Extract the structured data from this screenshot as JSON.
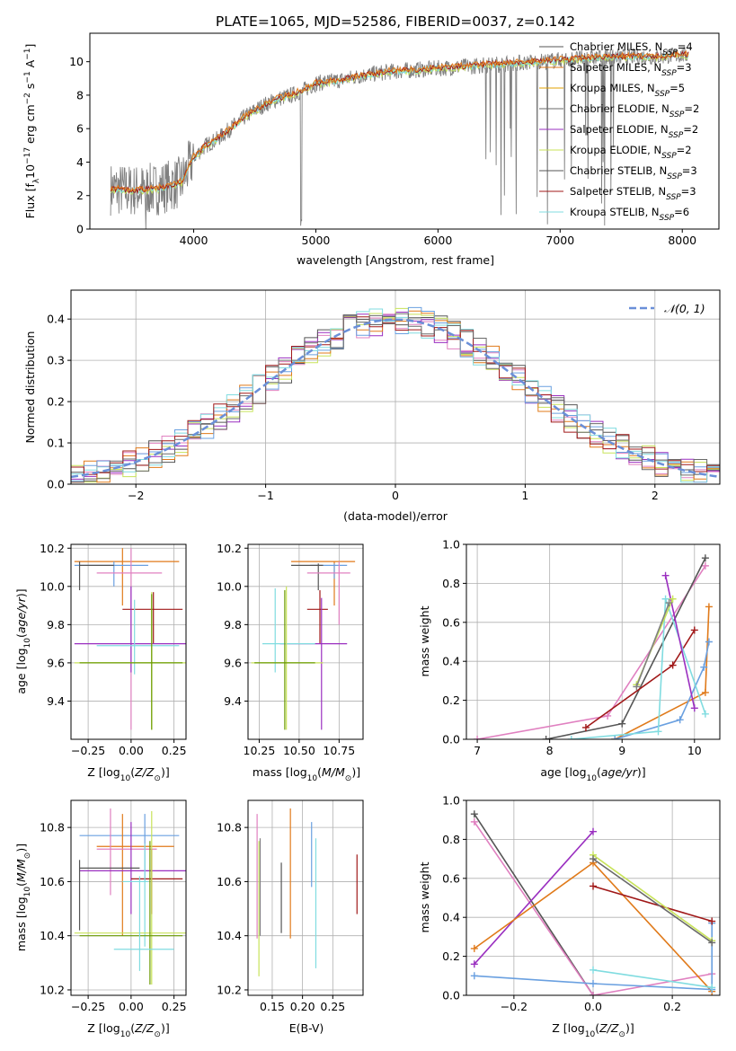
{
  "figure": {
    "title": "PLATE=1065, MJD=52586, FIBERID=0037, z=0.142"
  },
  "colors": {
    "data": "#808080",
    "models": [
      "#f59e5b",
      "#e0701a",
      "#e07a1a",
      "#6a6a6a",
      "#9a2fc0",
      "#c8e35a",
      "#555555",
      "#a01818",
      "#80dce0"
    ],
    "weights": {
      "chab_miles": "#555555",
      "salp_miles": "#e07a1a",
      "krou_miles": "#6aa0e0",
      "chab_elodie": "#808080",
      "salp_elodie": "#9a2fc0",
      "krou_elodie": "#c8e35a",
      "chab_stelib": "#404040",
      "salp_stelib": "#a01818",
      "krou_stelib": "#80dce0",
      "pink": "#e080c0"
    }
  },
  "chart_data": [
    {
      "id": "spectrum",
      "type": "line",
      "title": "PLATE=1065, MJD=52586, FIBERID=0037, z=0.142",
      "xlabel": "wavelength [Angstrom, rest frame]",
      "ylabel": "Flux [f_λ10^-17 erg cm^-2 s^-1 A^-1]",
      "xlim": [
        3150,
        8300
      ],
      "ylim": [
        0,
        11.7
      ],
      "xticks": [
        4000,
        5000,
        6000,
        7000,
        8000
      ],
      "yticks": [
        0,
        2,
        4,
        6,
        8,
        10
      ],
      "legend_position": "top-right",
      "legend": [
        {
          "label": "Chabrier MILES, N_SSP=4",
          "color": "#555555"
        },
        {
          "label": "Salpeter MILES, N_SSP=3",
          "color": "#e07a1a"
        },
        {
          "label": "Kroupa MILES, N_SSP=5",
          "color": "#e0a000"
        },
        {
          "label": "Chabrier ELODIE, N_SSP=2",
          "color": "#6a6a6a"
        },
        {
          "label": "Salpeter ELODIE, N_SSP=2",
          "color": "#9a2fc0"
        },
        {
          "label": "Kroupa ELODIE, N_SSP=2",
          "color": "#c8e35a"
        },
        {
          "label": "Chabrier STELIB, N_SSP=3",
          "color": "#555555"
        },
        {
          "label": "Salpeter STELIB, N_SSP=3",
          "color": "#a01818"
        },
        {
          "label": "Kroupa STELIB, N_SSP=6",
          "color": "#80dce0"
        }
      ],
      "continuum": {
        "x": [
          3320,
          3500,
          3700,
          3900,
          4000,
          4100,
          4200,
          4300,
          4400,
          4500,
          4600,
          4700,
          4800,
          4900,
          5000,
          5200,
          5400,
          5600,
          5800,
          6000,
          6200,
          6400,
          6600,
          6800,
          7000,
          7200,
          7400,
          7600,
          7800,
          8000
        ],
        "y": [
          2.4,
          2.3,
          2.4,
          2.8,
          4.3,
          5.0,
          5.4,
          6.0,
          6.6,
          7.1,
          7.5,
          7.8,
          8.0,
          8.3,
          8.7,
          8.9,
          9.2,
          9.4,
          9.5,
          9.6,
          9.7,
          9.8,
          9.9,
          10.0,
          10.1,
          10.2,
          10.3,
          10.3,
          10.3,
          10.4
        ]
      }
    },
    {
      "id": "residuals",
      "type": "line",
      "xlabel": "(data-model)/error",
      "ylabel": "Normed distribution",
      "xlim": [
        -2.5,
        2.5
      ],
      "ylim": [
        0,
        0.47
      ],
      "xticks": [
        -2,
        -1,
        0,
        1,
        2
      ],
      "yticks": [
        0.0,
        0.1,
        0.2,
        0.3,
        0.4
      ],
      "legend": [
        {
          "label": "𝒩(0, 1)",
          "color": "#6a8fd8",
          "style": "dashed"
        }
      ],
      "legend_position": "top-right",
      "grid": true
    },
    {
      "id": "z_age",
      "type": "scatter",
      "xlabel": "Z [log10(Z/Z⊙)]",
      "ylabel": "age  [log10(age/yr)]",
      "xlim": [
        -0.35,
        0.32
      ],
      "ylim": [
        9.2,
        10.22
      ],
      "xticks": [
        -0.25,
        0.0,
        0.25
      ],
      "yticks": [
        9.4,
        9.6,
        9.8,
        10.0,
        10.2
      ],
      "grid": true,
      "points": [
        {
          "x": -0.05,
          "y": 10.13,
          "ex": [
            -0.33,
            0.28
          ],
          "ey": [
            9.9,
            10.2
          ],
          "color": "#e07a1a"
        },
        {
          "x": -0.1,
          "y": 10.11,
          "ex": [
            -0.33,
            0.1
          ],
          "ey": [
            10.0,
            10.13
          ],
          "color": "#6aa0e0"
        },
        {
          "x": -0.3,
          "y": 10.11,
          "ex": [
            -0.3,
            -0.1
          ],
          "ey": [
            9.98,
            10.13
          ],
          "color": "#555555"
        },
        {
          "x": 0.0,
          "y": 10.07,
          "ex": [
            -0.2,
            0.18
          ],
          "ey": [
            9.25,
            10.2
          ],
          "color": "#e080c0"
        },
        {
          "x": 0.13,
          "y": 9.88,
          "ex": [
            -0.05,
            0.3
          ],
          "ey": [
            9.7,
            9.97
          ],
          "color": "#a01818"
        },
        {
          "x": 0.0,
          "y": 9.7,
          "ex": [
            -0.33,
            0.32
          ],
          "ey": [
            9.55,
            10.0
          ],
          "color": "#9a2fc0"
        },
        {
          "x": 0.02,
          "y": 9.69,
          "ex": [
            -0.2,
            0.28
          ],
          "ey": [
            9.54,
            9.93
          ],
          "color": "#80dce0"
        },
        {
          "x": 0.12,
          "y": 9.6,
          "ex": [
            -0.33,
            0.32
          ],
          "ey": [
            9.25,
            9.97
          ],
          "color": "#c8e35a"
        },
        {
          "x": 0.12,
          "y": 9.6,
          "ex": [
            -0.3,
            0.3
          ],
          "ey": [
            9.25,
            9.96
          ],
          "color": "#6a9a00"
        }
      ]
    },
    {
      "id": "mass_age",
      "type": "scatter",
      "xlabel": "mass [log10(M/M⊙)]",
      "ylabel": "",
      "xlim": [
        10.18,
        10.9
      ],
      "ylim": [
        9.2,
        10.22
      ],
      "xticks": [
        10.25,
        10.5,
        10.75
      ],
      "yticks": [
        9.4,
        9.6,
        9.8,
        10.0,
        10.2
      ],
      "grid": true,
      "points": [
        {
          "x": 10.72,
          "y": 10.13,
          "ex": [
            10.45,
            10.85
          ],
          "ey": [
            9.9,
            10.13
          ],
          "color": "#e07a1a"
        },
        {
          "x": 10.72,
          "y": 10.11,
          "ex": [
            10.57,
            10.8
          ],
          "ey": [
            10.04,
            10.12
          ],
          "color": "#6aa0e0"
        },
        {
          "x": 10.62,
          "y": 10.11,
          "ex": [
            10.45,
            10.65
          ],
          "ey": [
            9.98,
            10.12
          ],
          "color": "#555555"
        },
        {
          "x": 10.75,
          "y": 10.07,
          "ex": [
            10.55,
            10.82
          ],
          "ey": [
            9.8,
            10.13
          ],
          "color": "#e080c0"
        },
        {
          "x": 10.63,
          "y": 9.88,
          "ex": [
            10.55,
            10.68
          ],
          "ey": [
            9.7,
            9.98
          ],
          "color": "#a01818"
        },
        {
          "x": 10.64,
          "y": 9.7,
          "ex": [
            10.38,
            10.8
          ],
          "ey": [
            9.25,
            9.94
          ],
          "color": "#9a2fc0"
        },
        {
          "x": 10.35,
          "y": 9.7,
          "ex": [
            10.27,
            10.6
          ],
          "ey": [
            9.55,
            9.99
          ],
          "color": "#80dce0"
        },
        {
          "x": 10.42,
          "y": 9.6,
          "ex": [
            10.2,
            10.65
          ],
          "ey": [
            9.25,
            10.0
          ],
          "color": "#c8e35a"
        },
        {
          "x": 10.41,
          "y": 9.6,
          "ex": [
            10.22,
            10.6
          ],
          "ey": [
            9.25,
            9.98
          ],
          "color": "#6a9a00"
        }
      ]
    },
    {
      "id": "weights_age",
      "type": "line",
      "xlabel": "age  [log10(age/yr)]",
      "ylabel": "mass weight",
      "xlim": [
        6.85,
        10.35
      ],
      "ylim": [
        0,
        1.0
      ],
      "xticks": [
        7,
        8,
        9,
        10
      ],
      "yticks": [
        0.0,
        0.2,
        0.4,
        0.6,
        0.8,
        1.0
      ],
      "grid": true,
      "series": [
        {
          "key": "pink",
          "color": "#e080c0",
          "x": [
            7.0,
            8.8,
            10.15
          ],
          "y": [
            0.0,
            0.12,
            0.89
          ]
        },
        {
          "key": "gray",
          "color": "#555555",
          "x": [
            7.95,
            9.0,
            10.15
          ],
          "y": [
            0.0,
            0.08,
            0.93
          ]
        },
        {
          "key": "salp_stelib",
          "color": "#a01818",
          "x": [
            8.5,
            9.7,
            10.0
          ],
          "y": [
            0.06,
            0.38,
            0.56
          ]
        },
        {
          "key": "salp_miles",
          "color": "#e07a1a",
          "x": [
            8.9,
            10.15,
            10.2
          ],
          "y": [
            0.0,
            0.24,
            0.68
          ]
        },
        {
          "key": "krou_miles",
          "color": "#6aa0e0",
          "x": [
            8.9,
            9.8,
            10.13,
            10.2
          ],
          "y": [
            0.0,
            0.1,
            0.37,
            0.5
          ]
        },
        {
          "key": "krou_stelib",
          "color": "#80dce0",
          "x": [
            8.3,
            9.5,
            9.6,
            10.15
          ],
          "y": [
            0.0,
            0.04,
            0.72,
            0.13
          ]
        },
        {
          "key": "salp_elodie",
          "color": "#9a2fc0",
          "x": [
            9.6,
            10.0
          ],
          "y": [
            0.84,
            0.16
          ]
        },
        {
          "key": "krou_elodie",
          "color": "#c8e35a",
          "x": [
            9.2,
            9.7
          ],
          "y": [
            0.28,
            0.72
          ]
        },
        {
          "key": "chab_elodie",
          "color": "#808080",
          "x": [
            9.2,
            9.65
          ],
          "y": [
            0.27,
            0.7
          ]
        }
      ]
    },
    {
      "id": "z_mass",
      "type": "scatter",
      "xlabel": "Z [log10(Z/Z⊙)]",
      "ylabel": "mass [log10(M/M⊙)]",
      "xlim": [
        -0.35,
        0.32
      ],
      "ylim": [
        10.18,
        10.9
      ],
      "xticks": [
        -0.25,
        0.0,
        0.25
      ],
      "yticks": [
        10.2,
        10.4,
        10.6,
        10.8
      ],
      "grid": true,
      "points": [
        {
          "x": 0.08,
          "y": 10.77,
          "ex": [
            -0.3,
            0.28
          ],
          "ey": [
            10.6,
            10.85
          ],
          "color": "#6aa0e0"
        },
        {
          "x": -0.05,
          "y": 10.73,
          "ex": [
            -0.2,
            0.25
          ],
          "ey": [
            10.4,
            10.85
          ],
          "color": "#e07a1a"
        },
        {
          "x": -0.12,
          "y": 10.72,
          "ex": [
            -0.2,
            0.15
          ],
          "ey": [
            10.55,
            10.87
          ],
          "color": "#e080c0"
        },
        {
          "x": 0.0,
          "y": 10.64,
          "ex": [
            -0.3,
            0.32
          ],
          "ey": [
            10.48,
            10.82
          ],
          "color": "#9a2fc0"
        },
        {
          "x": -0.3,
          "y": 10.65,
          "ex": [
            -0.3,
            0.05
          ],
          "ey": [
            10.42,
            10.68
          ],
          "color": "#555555"
        },
        {
          "x": 0.12,
          "y": 10.61,
          "ex": [
            0.0,
            0.3
          ],
          "ey": [
            10.48,
            10.72
          ],
          "color": "#a01818"
        },
        {
          "x": 0.08,
          "y": 10.6,
          "ex": [
            -0.05,
            0.1
          ],
          "ey": [
            10.36,
            10.74
          ],
          "color": "#80dce0"
        },
        {
          "x": 0.12,
          "y": 10.41,
          "ex": [
            -0.33,
            0.32
          ],
          "ey": [
            10.22,
            10.86
          ],
          "color": "#c8e35a"
        },
        {
          "x": 0.11,
          "y": 10.4,
          "ex": [
            -0.3,
            0.3
          ],
          "ey": [
            10.22,
            10.75
          ],
          "color": "#6a9a00"
        },
        {
          "x": 0.05,
          "y": 10.35,
          "ex": [
            -0.1,
            0.25
          ],
          "ey": [
            10.27,
            10.62
          ],
          "color": "#80dce0"
        }
      ]
    },
    {
      "id": "ebv_mass",
      "type": "scatter",
      "xlabel": "E(B-V)",
      "ylabel": "",
      "xlim": [
        0.11,
        0.3
      ],
      "ylim": [
        10.18,
        10.9
      ],
      "xticks": [
        0.15,
        0.2,
        0.25
      ],
      "yticks": [
        10.2,
        10.4,
        10.6,
        10.8
      ],
      "grid": true,
      "bars": [
        {
          "x": 0.125,
          "ey": [
            10.39,
            10.85
          ],
          "color": "#e080c0"
        },
        {
          "x": 0.128,
          "ey": [
            10.25,
            10.75
          ],
          "color": "#c8e35a"
        },
        {
          "x": 0.13,
          "ey": [
            10.4,
            10.76
          ],
          "color": "#808080"
        },
        {
          "x": 0.165,
          "ey": [
            10.41,
            10.67
          ],
          "color": "#555555"
        },
        {
          "x": 0.18,
          "ey": [
            10.39,
            10.87
          ],
          "color": "#e07a1a"
        },
        {
          "x": 0.215,
          "ey": [
            10.58,
            10.82
          ],
          "color": "#6aa0e0"
        },
        {
          "x": 0.222,
          "ey": [
            10.28,
            10.76
          ],
          "color": "#80dce0"
        },
        {
          "x": 0.29,
          "ey": [
            10.48,
            10.7
          ],
          "color": "#a01818"
        }
      ]
    },
    {
      "id": "weights_z",
      "type": "line",
      "xlabel": "Z [log10(Z/Z⊙)]",
      "ylabel": "mass weight",
      "xlim": [
        -0.32,
        0.32
      ],
      "ylim": [
        0,
        1.0
      ],
      "xticks": [
        -0.2,
        0.0,
        0.2
      ],
      "yticks": [
        0.0,
        0.2,
        0.4,
        0.6,
        0.8,
        1.0
      ],
      "grid": true,
      "series": [
        {
          "key": "gray",
          "color": "#555555",
          "x": [
            -0.3,
            0.0
          ],
          "y": [
            0.93,
            0.0
          ]
        },
        {
          "key": "pink",
          "color": "#e080c0",
          "x": [
            -0.3,
            0.0,
            0.3
          ],
          "y": [
            0.89,
            0.0,
            0.11
          ]
        },
        {
          "key": "salp_elodie",
          "color": "#9a2fc0",
          "x": [
            -0.3,
            0.0
          ],
          "y": [
            0.16,
            0.84
          ]
        },
        {
          "key": "salp_miles",
          "color": "#e07a1a",
          "x": [
            -0.3,
            0.0,
            0.3
          ],
          "y": [
            0.24,
            0.68,
            0.02
          ]
        },
        {
          "key": "krou_miles",
          "color": "#6aa0e0",
          "x": [
            -0.3,
            0.0,
            0.3,
            0.3
          ],
          "y": [
            0.1,
            0.06,
            0.03,
            0.37
          ]
        },
        {
          "key": "salp_stelib",
          "color": "#a01818",
          "x": [
            0.0,
            0.3
          ],
          "y": [
            0.56,
            0.38
          ]
        },
        {
          "key": "krou_elodie",
          "color": "#c8e35a",
          "x": [
            0.0,
            0.3
          ],
          "y": [
            0.72,
            0.28
          ]
        },
        {
          "key": "chab_elodie",
          "color": "#6a6a6a",
          "x": [
            0.0,
            0.3
          ],
          "y": [
            0.7,
            0.27
          ]
        },
        {
          "key": "krou_stelib",
          "color": "#80dce0",
          "x": [
            0.0,
            0.3
          ],
          "y": [
            0.13,
            0.04
          ]
        }
      ]
    }
  ]
}
